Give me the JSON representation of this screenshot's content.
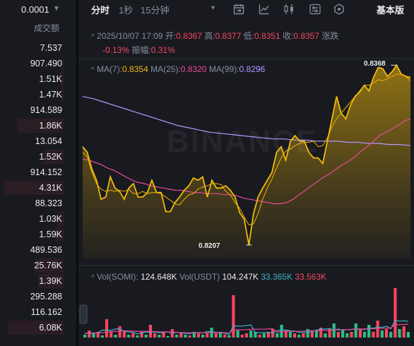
{
  "orderbook": {
    "precision": "0.0001",
    "volume_header": "成交额",
    "rows": [
      {
        "v": "7.537",
        "w": 0
      },
      {
        "v": "907.490",
        "w": 0.02
      },
      {
        "v": "1.51K",
        "w": 0.06
      },
      {
        "v": "1.47K",
        "w": 0.05
      },
      {
        "v": "914.589",
        "w": 0
      },
      {
        "v": "1.86K",
        "w": 0.72
      },
      {
        "v": "13.054",
        "w": 0
      },
      {
        "v": "1.52K",
        "w": 0.32
      },
      {
        "v": "914.152",
        "w": 0
      },
      {
        "v": "4.31K",
        "w": 0.95
      },
      {
        "v": "88.323",
        "w": 0
      },
      {
        "v": "1.03K",
        "w": 0.1
      },
      {
        "v": "1.59K",
        "w": 0.12
      },
      {
        "v": "489.536",
        "w": 0
      },
      {
        "v": "25.76K",
        "w": 0.45
      },
      {
        "v": "1.39K",
        "w": 0.4
      },
      {
        "v": "295.288",
        "w": 0
      },
      {
        "v": "116.162",
        "w": 0
      },
      {
        "v": "6.08K",
        "w": 0.88
      }
    ]
  },
  "toolbar": {
    "tab_time": "分时",
    "tab_1s": "1秒",
    "tab_15m": "15分钟",
    "caret": "▾",
    "basic": "基本版"
  },
  "ohlc": {
    "toggle": "^",
    "time": "2025/10/07 17:09",
    "open_label": "开:",
    "open": "0.8367",
    "high_label": "高:",
    "high": "0.8377",
    "low_label": "低:",
    "low": "0.8351",
    "close_label": "收:",
    "close": "0.8357",
    "change_label": "涨跌",
    "change_pct": "-0.13%",
    "amp_label": "振幅:",
    "amp": "0.31%"
  },
  "ma": {
    "toggle": "^",
    "ma7_label": "MA(7):",
    "ma7": "0.8354",
    "ma25_label": "MA(25):",
    "ma25": "0.8320",
    "ma99_label": "MA(99):",
    "ma99": "0.8296"
  },
  "chart_labels": {
    "high": "0.8368",
    "low": "0.8207"
  },
  "watermark": "BINANCE",
  "vol": {
    "toggle": "^",
    "somi_label": "Vol(SOMI):",
    "somi": "124.648K",
    "usdt_label": "Vol(USDT)",
    "usdt": "104.247K",
    "ma5": "33.365K",
    "ma10": "33.563K"
  },
  "colors": {
    "up": "#2ebd85",
    "down": "#f6465d",
    "price": "#f0b90b",
    "ma25": "#e84a9b",
    "ma99": "#b198ff",
    "bg": "#181a20"
  },
  "icons": [
    "calendar-icon",
    "line-chart-icon",
    "candlestick-icon",
    "settings-sliders-icon",
    "indicator-icon"
  ],
  "chart_data": {
    "type": "area",
    "x_unit": "minutes (1-minute bars)",
    "labels": {
      "high": 0.8368,
      "low": 0.8207
    },
    "price": [
      0.8295,
      0.829,
      0.8275,
      0.8265,
      0.8248,
      0.825,
      0.8268,
      0.8258,
      0.8255,
      0.8248,
      0.8258,
      0.8262,
      0.825,
      0.825,
      0.8254,
      0.8265,
      0.8254,
      0.8254,
      0.8237,
      0.8237,
      0.8245,
      0.825,
      0.8256,
      0.826,
      0.8267,
      0.8265,
      0.8268,
      0.825,
      0.8265,
      0.8258,
      0.8258,
      0.826,
      0.8256,
      0.825,
      0.8236,
      0.823,
      0.8207,
      0.8235,
      0.825,
      0.8258,
      0.8265,
      0.8272,
      0.829,
      0.8295,
      0.8283,
      0.83,
      0.8305,
      0.83,
      0.83,
      0.829,
      0.8285,
      0.8285,
      0.828,
      0.83,
      0.832,
      0.834,
      0.8325,
      0.832,
      0.8332,
      0.834,
      0.8344,
      0.835,
      0.8345,
      0.8357,
      0.8366,
      0.8365,
      0.8358,
      0.8362,
      0.8368,
      0.836,
      0.8358,
      0.8357
    ],
    "ma7": [
      0.829,
      0.8286,
      0.8272,
      0.8262,
      0.8257,
      0.8255,
      0.8256,
      0.8255,
      0.8256,
      0.8255,
      0.8257,
      0.8253,
      0.8253,
      0.8255,
      0.8253,
      0.8254,
      0.8254,
      0.8253,
      0.825,
      0.8247,
      0.8244,
      0.8243,
      0.8248,
      0.8252,
      0.8253,
      0.8257,
      0.8259,
      0.826,
      0.8262,
      0.8262,
      0.8261,
      0.8255,
      0.8252,
      0.8245,
      0.824,
      0.8232,
      0.8225,
      0.8226,
      0.8235,
      0.8248,
      0.8258,
      0.8266,
      0.8276,
      0.8285,
      0.8291,
      0.8293,
      0.8296,
      0.8298,
      0.8299,
      0.8299,
      0.83,
      0.8295,
      0.8296,
      0.8303,
      0.8313,
      0.832,
      0.8325,
      0.833,
      0.8335,
      0.834,
      0.8345,
      0.835,
      0.835,
      0.8352,
      0.8355,
      0.8354,
      0.8356,
      0.8358,
      0.836,
      0.836,
      0.8358,
      0.8354
    ],
    "ma25": [
      0.8284,
      0.8283,
      0.8281,
      0.8279,
      0.8276,
      0.8274,
      0.8271,
      0.8268,
      0.8265,
      0.8263,
      0.8262,
      0.826,
      0.8259,
      0.8258,
      0.8257,
      0.8256,
      0.8256,
      0.8255,
      0.8254,
      0.8254,
      0.8253,
      0.8253,
      0.8253,
      0.8252,
      0.8252,
      0.8251,
      0.8249,
      0.8248,
      0.8247,
      0.8246,
      0.8245,
      0.8244,
      0.8244,
      0.8245,
      0.8248,
      0.8252,
      0.8256,
      0.826,
      0.8264,
      0.8268,
      0.8271,
      0.8275,
      0.8279,
      0.8282,
      0.8286,
      0.8291,
      0.8295,
      0.83,
      0.8305,
      0.8308,
      0.8311,
      0.8314,
      0.8318,
      0.832
    ],
    "ma99": [
      0.834,
      0.8338,
      0.8335,
      0.8332,
      0.8329,
      0.8326,
      0.8323,
      0.832,
      0.8317,
      0.8314,
      0.8312,
      0.831,
      0.8308,
      0.8307,
      0.8306,
      0.8305,
      0.8304,
      0.8303,
      0.8302,
      0.8302,
      0.8301,
      0.8301,
      0.83,
      0.83,
      0.83,
      0.8299,
      0.8299,
      0.8298,
      0.8298,
      0.8297,
      0.8297,
      0.8296
    ],
    "volume": [
      {
        "v": 2,
        "c": "u"
      },
      {
        "v": 5,
        "c": "d"
      },
      {
        "v": 3,
        "c": "u"
      },
      {
        "v": 4,
        "c": "d"
      },
      {
        "v": 1.5,
        "c": "u"
      },
      {
        "v": 13,
        "c": "d"
      },
      {
        "v": 4,
        "c": "d"
      },
      {
        "v": 2,
        "c": "u"
      },
      {
        "v": 8,
        "c": "d"
      },
      {
        "v": 4,
        "c": "d"
      },
      {
        "v": 2,
        "c": "u"
      },
      {
        "v": 3,
        "c": "d"
      },
      {
        "v": 1.5,
        "c": "u"
      },
      {
        "v": 4,
        "c": "d"
      },
      {
        "v": 2,
        "c": "u"
      },
      {
        "v": 9,
        "c": "d"
      },
      {
        "v": 3,
        "c": "d"
      },
      {
        "v": 2,
        "c": "u"
      },
      {
        "v": 4,
        "c": "d"
      },
      {
        "v": 1,
        "c": "u"
      },
      {
        "v": 6,
        "c": "d"
      },
      {
        "v": 2,
        "c": "u"
      },
      {
        "v": 3,
        "c": "d"
      },
      {
        "v": 2,
        "c": "u"
      },
      {
        "v": 1.5,
        "c": "d"
      },
      {
        "v": 4,
        "c": "u"
      },
      {
        "v": 3,
        "c": "d"
      },
      {
        "v": 2,
        "c": "u"
      },
      {
        "v": 3,
        "c": "d"
      },
      {
        "v": 7,
        "c": "u"
      },
      {
        "v": 3,
        "c": "d"
      },
      {
        "v": 4,
        "c": "u"
      },
      {
        "v": 2,
        "c": "d"
      },
      {
        "v": 1.5,
        "c": "u"
      },
      {
        "v": 30,
        "c": "d"
      },
      {
        "v": 5,
        "c": "u"
      },
      {
        "v": 2,
        "c": "d"
      },
      {
        "v": 3,
        "c": "d"
      },
      {
        "v": 5,
        "c": "u"
      },
      {
        "v": 4,
        "c": "u"
      },
      {
        "v": 2,
        "c": "d"
      },
      {
        "v": 3,
        "c": "u"
      },
      {
        "v": 4,
        "c": "d"
      },
      {
        "v": 6,
        "c": "d"
      },
      {
        "v": 3,
        "c": "u"
      },
      {
        "v": 9,
        "c": "u"
      },
      {
        "v": 5,
        "c": "d"
      },
      {
        "v": 4,
        "c": "u"
      },
      {
        "v": 3,
        "c": "d"
      },
      {
        "v": 2,
        "c": "u"
      },
      {
        "v": 3,
        "c": "d"
      },
      {
        "v": 6,
        "c": "u"
      },
      {
        "v": 4,
        "c": "d"
      },
      {
        "v": 5,
        "c": "u"
      },
      {
        "v": 7,
        "c": "d"
      },
      {
        "v": 3,
        "c": "u"
      },
      {
        "v": 6,
        "c": "d"
      },
      {
        "v": 10,
        "c": "u"
      },
      {
        "v": 4,
        "c": "d"
      },
      {
        "v": 5,
        "c": "u"
      },
      {
        "v": 3,
        "c": "u"
      },
      {
        "v": 4,
        "c": "d"
      },
      {
        "v": 10,
        "c": "u"
      },
      {
        "v": 6,
        "c": "d"
      },
      {
        "v": 4,
        "c": "u"
      },
      {
        "v": 9,
        "c": "u"
      },
      {
        "v": 4,
        "c": "d"
      },
      {
        "v": 12,
        "c": "d"
      },
      {
        "v": 5,
        "c": "u"
      },
      {
        "v": 6,
        "c": "d"
      },
      {
        "v": 4,
        "c": "u"
      },
      {
        "v": 35,
        "c": "d"
      },
      {
        "v": 6,
        "c": "u"
      },
      {
        "v": 8,
        "c": "d"
      },
      {
        "v": 4,
        "c": "u"
      }
    ],
    "vol_ma5": [
      2.7,
      3.4,
      3.2,
      3.4,
      5.3,
      5.2,
      5.0,
      6.0,
      6.2,
      4.2,
      3.9,
      3.7,
      2.6,
      3.0,
      3.9,
      3.7,
      4.0,
      3.4,
      3.6,
      4.0,
      2.9,
      3.8,
      3.2,
      3.0,
      2.8,
      3.4,
      3.6,
      3.2,
      4.2,
      4.1,
      3.7,
      3.6,
      2.9,
      2.1,
      8.3,
      8.1,
      8.1,
      8.5,
      9.0,
      3.4,
      3.4,
      3.6,
      3.6,
      3.2,
      4.8,
      5.4,
      5.4,
      4.8,
      4.6,
      3.6,
      3.6,
      3.6,
      4.2,
      5.2,
      6.0,
      6.0,
      6.4,
      5.2,
      6.0,
      5.2,
      5.6,
      5.6,
      6.2,
      5.8,
      5.6,
      6.8,
      6.6,
      7.4,
      7.2,
      8.0,
      6.2,
      12.2,
      11.6,
      11.8,
      11.4
    ],
    "vol_ma10": [
      3.0,
      3.0,
      3.1,
      3.2,
      3.4,
      3.8,
      4.1,
      4.3,
      4.6,
      4.8,
      4.7,
      4.5,
      4.3,
      4.3,
      4.4,
      4.3,
      4.2,
      4.0,
      4.0,
      4.0,
      3.6,
      3.7,
      3.5,
      3.4,
      3.3,
      3.4,
      3.4,
      3.3,
      3.5,
      3.6,
      3.4,
      3.6,
      3.4,
      3.2,
      5.5,
      5.5,
      5.4,
      5.6,
      5.8,
      5.9,
      5.9,
      5.9,
      6.1,
      6.2,
      3.9,
      4.2,
      4.4,
      4.5,
      4.3,
      4.4,
      4.5,
      4.8,
      4.8,
      4.8,
      5.2,
      4.9,
      5.1,
      5.5,
      5.4,
      5.6,
      5.6,
      5.8,
      6.2,
      6.1,
      6.0,
      6.4,
      6.2,
      6.6,
      6.5,
      6.6,
      6.8,
      9.3,
      9.1,
      9.3,
      9.4
    ]
  }
}
